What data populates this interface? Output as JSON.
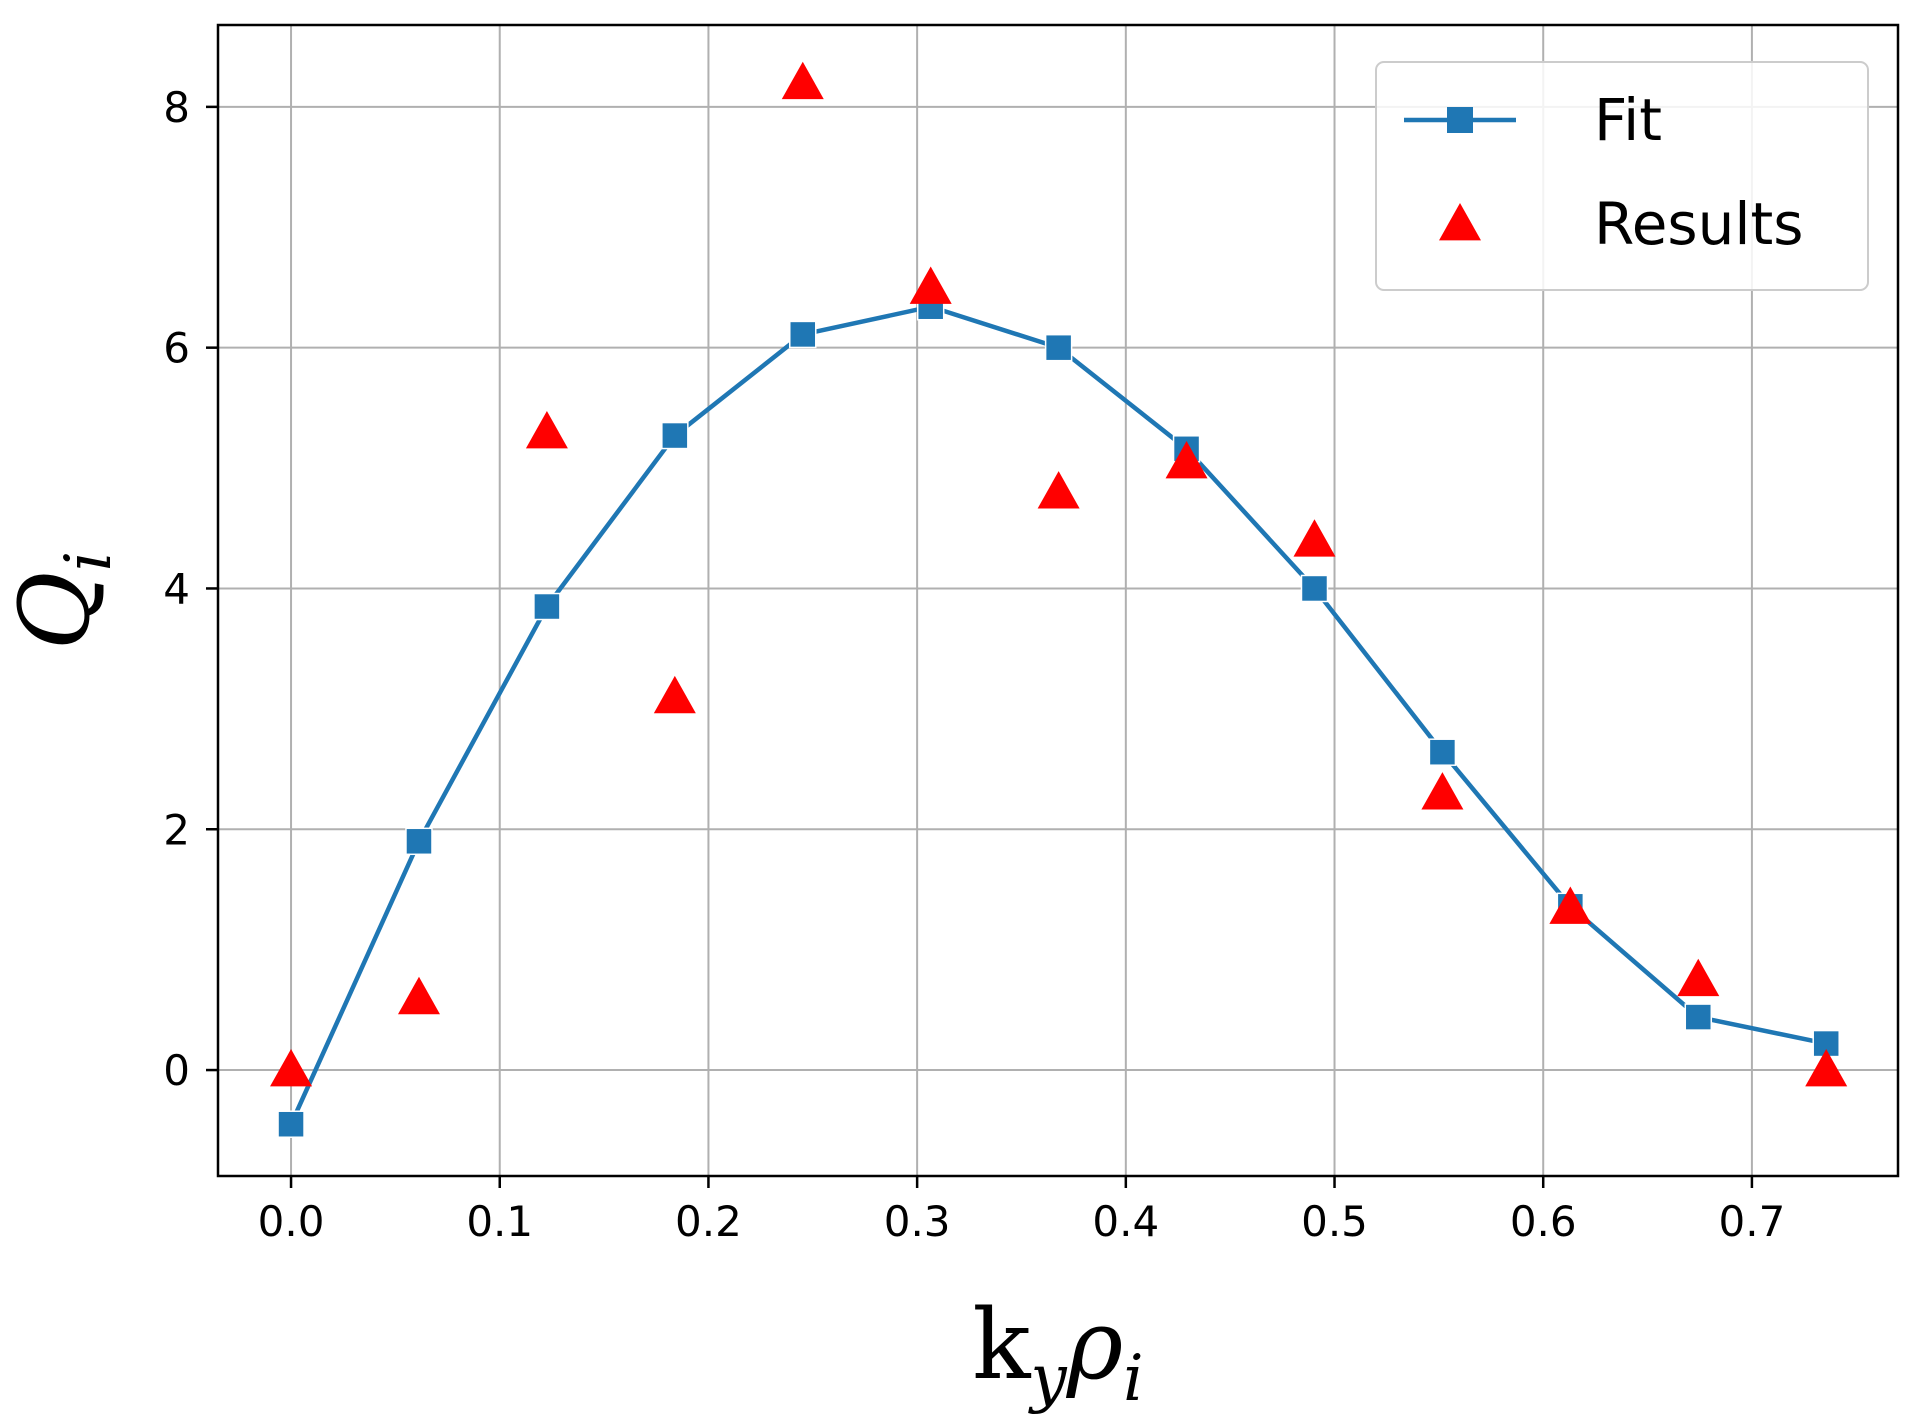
{
  "chart_data": {
    "type": "line",
    "x_ticks": [
      0.0,
      0.1,
      0.2,
      0.3,
      0.4,
      0.5,
      0.6,
      0.7
    ],
    "x_tick_labels": [
      "0.0",
      "0.1",
      "0.2",
      "0.3",
      "0.4",
      "0.5",
      "0.6",
      "0.7"
    ],
    "y_ticks": [
      0,
      2,
      4,
      6,
      8
    ],
    "y_tick_labels": [
      "0",
      "2",
      "4",
      "6",
      "8"
    ],
    "xlim": [
      -0.035,
      0.77
    ],
    "ylim": [
      -0.88,
      8.68
    ],
    "grid": true,
    "legend_position": "top-right",
    "xlabel": {
      "base": "k",
      "sub1": "y",
      "mid": "ρ",
      "sub2": "i"
    },
    "ylabel": {
      "base": "Q",
      "sub": "i"
    },
    "series": [
      {
        "name": "Fit",
        "style": "line-square",
        "color": "#1f77b4",
        "x": [
          0.0,
          0.0613,
          0.1226,
          0.1839,
          0.2452,
          0.3065,
          0.3678,
          0.4291,
          0.4904,
          0.5517,
          0.613,
          0.6743,
          0.7356
        ],
        "y": [
          -0.45,
          1.9,
          3.85,
          5.27,
          6.11,
          6.34,
          6.0,
          5.16,
          4.0,
          2.64,
          1.36,
          0.44,
          0.22
        ]
      },
      {
        "name": "Results",
        "style": "triangle",
        "color": "#ff0000",
        "x": [
          0.0,
          0.0613,
          0.1226,
          0.1839,
          0.2452,
          0.3065,
          0.3678,
          0.4291,
          0.4904,
          0.5517,
          0.613,
          0.6743,
          0.7356
        ],
        "y": [
          0.0,
          0.6,
          5.3,
          3.1,
          8.2,
          6.5,
          4.8,
          5.05,
          4.4,
          2.3,
          1.35,
          0.75,
          0.0
        ]
      }
    ]
  }
}
